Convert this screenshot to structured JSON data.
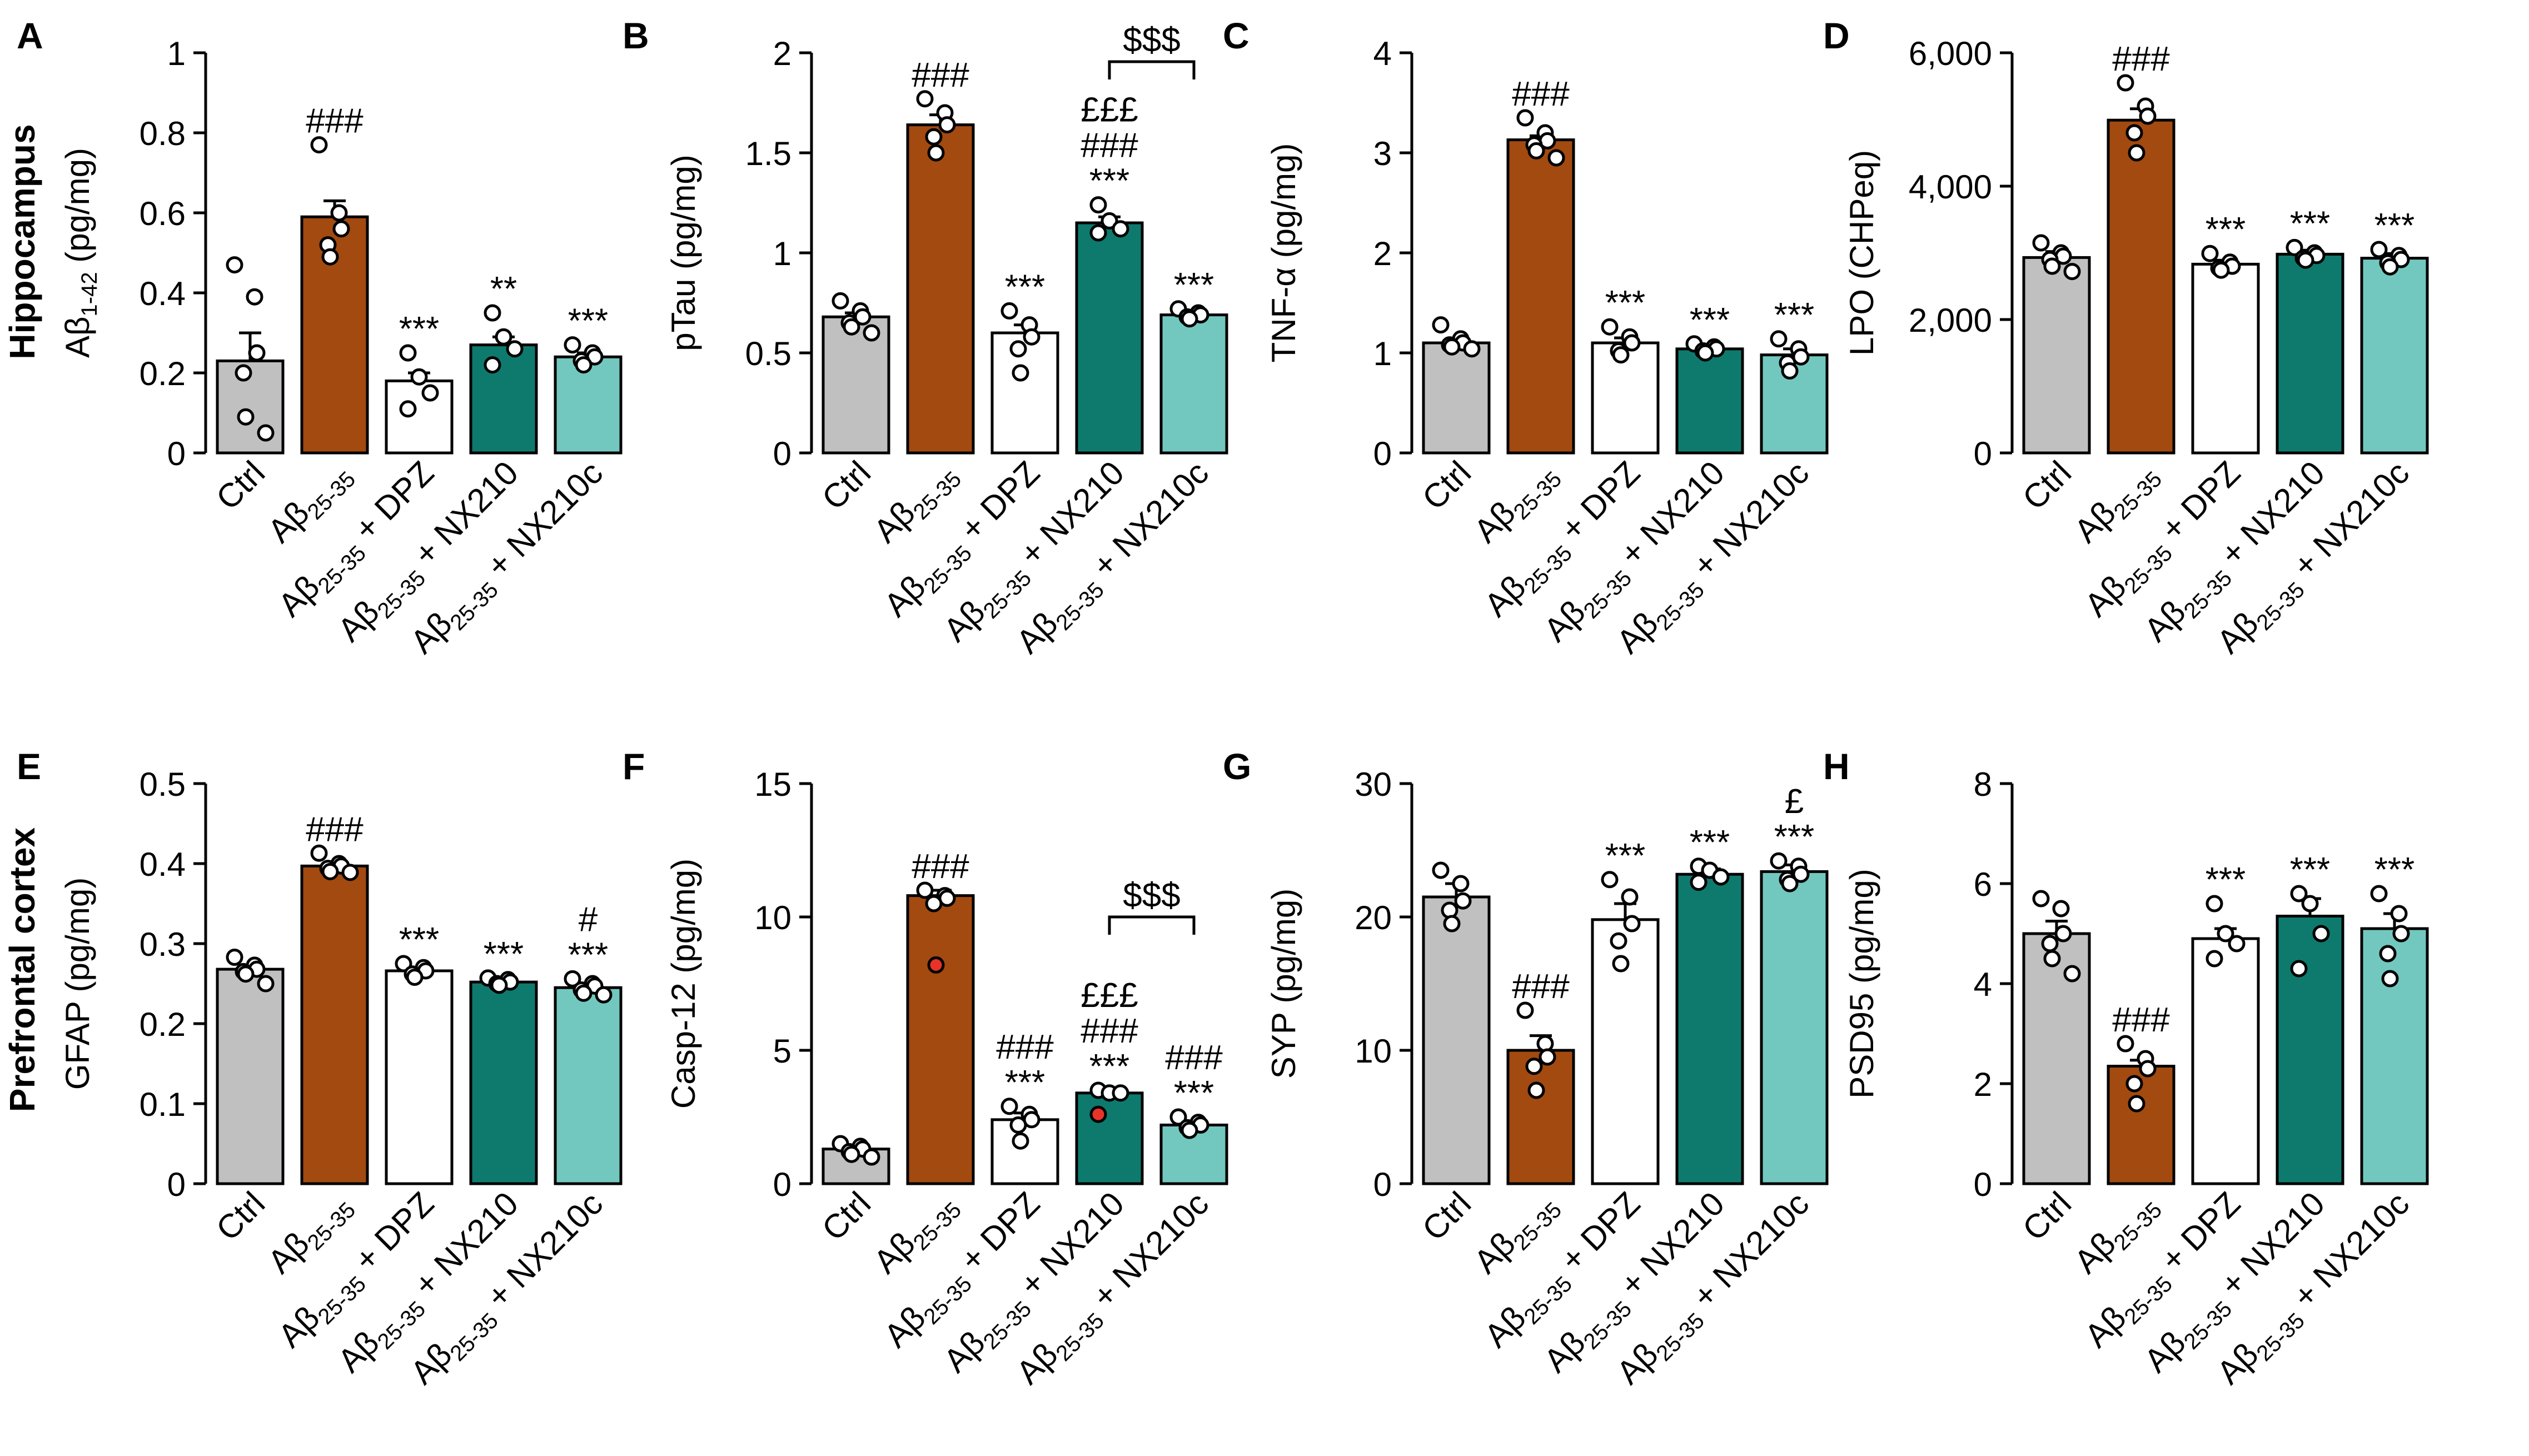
{
  "rows": [
    {
      "label": "Hippocampus",
      "panels": [
        0,
        1,
        2,
        3
      ]
    },
    {
      "label": "Prefrontal cortex",
      "panels": [
        4,
        5,
        6,
        7
      ]
    }
  ],
  "groups": [
    {
      "main": "Ctrl",
      "sub": "",
      "suffix": ""
    },
    {
      "main": "Aβ",
      "sub": "25-35",
      "suffix": ""
    },
    {
      "main": "Aβ",
      "sub": "25-35",
      "suffix": " + DPZ"
    },
    {
      "main": "Aβ",
      "sub": "25-35",
      "suffix": " + NX210"
    },
    {
      "main": "Aβ",
      "sub": "25-35",
      "suffix": " + NX210c"
    }
  ],
  "colors": {
    "Ctrl": "#c0c0c0",
    "Abeta": "#a24a10",
    "DPZ": "#ffffff",
    "NX210": "#0e7a6e",
    "NX210c": "#72c8be",
    "highlight_dot": "#e8332a"
  },
  "chart_data": [
    {
      "type": "bar",
      "letter": "A",
      "ylabel": {
        "main": "Aβ",
        "sub": "1-42",
        "rest": " (pg/mg)"
      },
      "ylim": [
        0,
        1
      ],
      "yticks": [
        {
          "v": 0,
          "t": "0"
        },
        {
          "v": 0.2,
          "t": "0.2"
        },
        {
          "v": 0.4,
          "t": "0.4"
        },
        {
          "v": 0.6,
          "t": "0.6"
        },
        {
          "v": 0.8,
          "t": "0.8"
        },
        {
          "v": 1,
          "t": "1"
        }
      ],
      "values": [
        0.23,
        0.59,
        0.18,
        0.27,
        0.24
      ],
      "sem": [
        0.07,
        0.04,
        0.02,
        0.02,
        0.01
      ],
      "points": [
        [
          0.47,
          0.39,
          0.25,
          0.2,
          0.09,
          0.05
        ],
        [
          0.77,
          0.6,
          0.56,
          0.52,
          0.49
        ],
        [
          0.25,
          0.19,
          0.15,
          0.11
        ],
        [
          0.35,
          0.29,
          0.26,
          0.22
        ],
        [
          0.27,
          0.25,
          0.24,
          0.23,
          0.22
        ]
      ],
      "annotations": [
        [],
        [
          "###"
        ],
        [
          "***"
        ],
        [
          "**"
        ],
        [
          "***"
        ]
      ],
      "bracket": null
    },
    {
      "type": "bar",
      "letter": "B",
      "ylabel": {
        "main": "pTau (pg/mg)",
        "sub": "",
        "rest": ""
      },
      "ylim": [
        0,
        2
      ],
      "yticks": [
        {
          "v": 0,
          "t": "0"
        },
        {
          "v": 0.5,
          "t": "0.5"
        },
        {
          "v": 1,
          "t": "1"
        },
        {
          "v": 1.5,
          "t": "1.5"
        },
        {
          "v": 2,
          "t": "2"
        }
      ],
      "values": [
        0.68,
        1.64,
        0.6,
        1.15,
        0.69
      ],
      "sem": [
        0.02,
        0.05,
        0.04,
        0.03,
        0.01
      ],
      "points": [
        [
          0.76,
          0.71,
          0.68,
          0.65,
          0.63,
          0.6
        ],
        [
          1.77,
          1.7,
          1.64,
          1.58,
          1.5
        ],
        [
          0.71,
          0.64,
          0.58,
          0.52,
          0.4
        ],
        [
          1.24,
          1.16,
          1.12,
          1.1
        ],
        [
          0.72,
          0.7,
          0.69,
          0.68,
          0.67
        ]
      ],
      "annotations": [
        [],
        [
          "###"
        ],
        [
          "***"
        ],
        [
          "***",
          "###",
          "£££"
        ],
        [
          "***"
        ]
      ],
      "bracket": {
        "from": 3,
        "to": 4,
        "label": "$$$"
      }
    },
    {
      "type": "bar",
      "letter": "C",
      "ylabel": {
        "main": "TNF-α (pg/mg)",
        "sub": "",
        "rest": ""
      },
      "ylim": [
        0,
        4
      ],
      "yticks": [
        {
          "v": 0,
          "t": "0"
        },
        {
          "v": 1,
          "t": "1"
        },
        {
          "v": 2,
          "t": "2"
        },
        {
          "v": 3,
          "t": "3"
        },
        {
          "v": 4,
          "t": "4"
        }
      ],
      "values": [
        1.1,
        3.13,
        1.1,
        1.04,
        0.98
      ],
      "sem": [
        0.04,
        0.04,
        0.05,
        0.02,
        0.06
      ],
      "points": [
        [
          1.28,
          1.14,
          1.1,
          1.08,
          1.06,
          1.04
        ],
        [
          3.35,
          3.2,
          3.12,
          3.08,
          3.02,
          2.95
        ],
        [
          1.26,
          1.16,
          1.1,
          1.02,
          0.98
        ],
        [
          1.09,
          1.06,
          1.04,
          1.02,
          1.0
        ],
        [
          1.14,
          1.04,
          0.96,
          0.9,
          0.82
        ]
      ],
      "annotations": [
        [],
        [
          "###"
        ],
        [
          "***"
        ],
        [
          "***"
        ],
        [
          "***"
        ]
      ],
      "bracket": null
    },
    {
      "type": "bar",
      "letter": "D",
      "ylabel": {
        "main": "LPO (CHPeq)",
        "sub": "",
        "rest": ""
      },
      "ylim": [
        0,
        6000
      ],
      "yticks": [
        {
          "v": 0,
          "t": "0"
        },
        {
          "v": 2000,
          "t": "2,000"
        },
        {
          "v": 4000,
          "t": "4,000"
        },
        {
          "v": 6000,
          "t": "6,000"
        }
      ],
      "values": [
        2930,
        4990,
        2830,
        2980,
        2920
      ],
      "sem": [
        90,
        170,
        60,
        60,
        70
      ],
      "points": [
        [
          3150,
          3000,
          2950,
          2900,
          2800,
          2720
        ],
        [
          5550,
          5200,
          5050,
          4800,
          4500
        ],
        [
          2990,
          2860,
          2800,
          2770,
          2740
        ],
        [
          3080,
          3000,
          2960,
          2920,
          2890
        ],
        [
          3050,
          2960,
          2900,
          2850,
          2790
        ]
      ],
      "annotations": [
        [],
        [
          "###"
        ],
        [
          "***"
        ],
        [
          "***"
        ],
        [
          "***"
        ]
      ],
      "bracket": null
    },
    {
      "type": "bar",
      "letter": "E",
      "ylabel": {
        "main": "GFAP (pg/mg)",
        "sub": "",
        "rest": ""
      },
      "ylim": [
        0,
        0.5
      ],
      "yticks": [
        {
          "v": 0,
          "t": "0"
        },
        {
          "v": 0.1,
          "t": "0.1"
        },
        {
          "v": 0.2,
          "t": "0.2"
        },
        {
          "v": 0.3,
          "t": "0.3"
        },
        {
          "v": 0.4,
          "t": "0.4"
        },
        {
          "v": 0.5,
          "t": "0.5"
        }
      ],
      "values": [
        0.268,
        0.397,
        0.266,
        0.252,
        0.245
      ],
      "sem": [
        0.005,
        0.004,
        0.003,
        0.002,
        0.003
      ],
      "points": [
        [
          0.283,
          0.273,
          0.268,
          0.265,
          0.262,
          0.25
        ],
        [
          0.413,
          0.4,
          0.397,
          0.394,
          0.39,
          0.389
        ],
        [
          0.275,
          0.27,
          0.266,
          0.262,
          0.258
        ],
        [
          0.257,
          0.255,
          0.252,
          0.25,
          0.248
        ],
        [
          0.256,
          0.25,
          0.247,
          0.242,
          0.238,
          0.236
        ]
      ],
      "annotations": [
        [],
        [
          "###"
        ],
        [
          "***"
        ],
        [
          "***"
        ],
        [
          "***",
          "#"
        ]
      ],
      "bracket": null
    },
    {
      "type": "bar",
      "letter": "F",
      "ylabel": {
        "main": "Casp-12 (pg/mg)",
        "sub": "",
        "rest": ""
      },
      "ylim": [
        0,
        15
      ],
      "yticks": [
        {
          "v": 0,
          "t": "0"
        },
        {
          "v": 5,
          "t": "5"
        },
        {
          "v": 10,
          "t": "10"
        },
        {
          "v": 15,
          "t": "15"
        }
      ],
      "values": [
        1.3,
        10.8,
        2.4,
        3.4,
        2.2
      ],
      "sem": [
        0.1,
        0.2,
        0.25,
        0.05,
        0.1
      ],
      "points": [
        [
          1.5,
          1.4,
          1.3,
          1.2,
          1.1,
          1.0
        ],
        [
          11.0,
          10.8,
          10.7,
          10.5,
          8.2
        ],
        [
          2.9,
          2.6,
          2.4,
          2.2,
          1.6
        ],
        [
          3.5,
          3.4,
          3.4,
          2.6
        ],
        [
          2.5,
          2.3,
          2.2,
          2.1,
          2.0
        ]
      ],
      "highlight": [
        [
          1,
          4
        ],
        [
          3,
          3
        ]
      ],
      "annotations": [
        [],
        [
          "###"
        ],
        [
          "***",
          "###"
        ],
        [
          "***",
          "###",
          "£££"
        ],
        [
          "***",
          "###"
        ]
      ],
      "bracket": {
        "from": 3,
        "to": 4,
        "label": "$$$"
      }
    },
    {
      "type": "bar",
      "letter": "G",
      "ylabel": {
        "main": "SYP (pg/mg)",
        "sub": "",
        "rest": ""
      },
      "ylim": [
        0,
        30
      ],
      "yticks": [
        {
          "v": 0,
          "t": "0"
        },
        {
          "v": 10,
          "t": "10"
        },
        {
          "v": 20,
          "t": "20"
        },
        {
          "v": 30,
          "t": "30"
        }
      ],
      "values": [
        21.5,
        10.0,
        19.8,
        23.2,
        23.4
      ],
      "sem": [
        1.0,
        1.1,
        1.2,
        0.4,
        0.5
      ],
      "points": [
        [
          23.5,
          22.5,
          21.2,
          20.5,
          19.5
        ],
        [
          13.0,
          10.5,
          9.5,
          8.8,
          7.0
        ],
        [
          22.8,
          21.5,
          19.5,
          18.2,
          16.5
        ],
        [
          23.8,
          23.5,
          23.0,
          22.6
        ],
        [
          24.2,
          23.8,
          23.2,
          22.8,
          22.5
        ]
      ],
      "annotations": [
        [],
        [
          "###"
        ],
        [
          "***"
        ],
        [
          "***"
        ],
        [
          "***",
          "£"
        ]
      ],
      "bracket": null
    },
    {
      "type": "bar",
      "letter": "H",
      "ylabel": {
        "main": "PSD95 (pg/mg)",
        "sub": "",
        "rest": ""
      },
      "ylim": [
        0,
        8
      ],
      "yticks": [
        {
          "v": 0,
          "t": "0"
        },
        {
          "v": 2,
          "t": "2"
        },
        {
          "v": 4,
          "t": "4"
        },
        {
          "v": 6,
          "t": "6"
        },
        {
          "v": 8,
          "t": "8"
        }
      ],
      "values": [
        5.0,
        2.35,
        4.9,
        5.35,
        5.1
      ],
      "sem": [
        0.25,
        0.12,
        0.2,
        0.35,
        0.3
      ],
      "points": [
        [
          5.7,
          5.5,
          5.0,
          4.8,
          4.5,
          4.2
        ],
        [
          2.8,
          2.5,
          2.3,
          2.0,
          1.6
        ],
        [
          5.6,
          5.0,
          4.8,
          4.5
        ],
        [
          5.8,
          5.6,
          5.0,
          4.3
        ],
        [
          5.8,
          5.4,
          5.0,
          4.6,
          4.1
        ]
      ],
      "annotations": [
        [],
        [
          "###"
        ],
        [
          "***"
        ],
        [
          "***"
        ],
        [
          "***"
        ]
      ],
      "bracket": null
    }
  ]
}
